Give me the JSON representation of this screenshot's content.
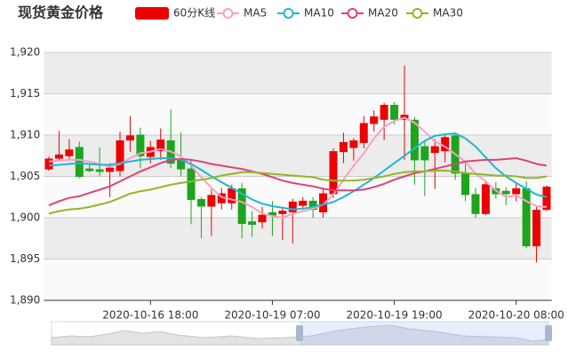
{
  "chart_data": {
    "type": "candlestick",
    "title": "现货黄金价格",
    "categories": [
      null,
      null,
      null,
      null,
      null,
      null,
      null,
      null,
      null,
      null,
      "2020-10-16 18:00",
      null,
      null,
      null,
      null,
      null,
      null,
      null,
      null,
      null,
      null,
      null,
      "2020-10-19 07:00",
      null,
      null,
      null,
      null,
      null,
      null,
      null,
      null,
      null,
      null,
      null,
      "2020-10-19 19:00",
      null,
      null,
      null,
      null,
      null,
      null,
      null,
      null,
      null,
      null,
      null,
      "2020-10-20 08:00",
      null,
      null,
      null
    ],
    "ylim": [
      1890,
      1920
    ],
    "yticks": [
      {
        "value": 1890,
        "label": "1,890"
      },
      {
        "value": 1895,
        "label": "1,895"
      },
      {
        "value": 1900,
        "label": "1,900"
      },
      {
        "value": 1905,
        "label": "1,905"
      },
      {
        "value": 1910,
        "label": "1,910"
      },
      {
        "value": 1915,
        "label": "1,915"
      },
      {
        "value": 1920,
        "label": "1,920"
      }
    ],
    "grid": true,
    "split_area": true,
    "legend": "top",
    "series": [
      {
        "name": "60分K线",
        "type": "candlestick",
        "color": "#ec0000",
        "up_color": "#ec0000",
        "down_color": "#1ea51e",
        "open": [
          1905.9,
          1907.2,
          1907.5,
          1908.5,
          1905.9,
          1905.8,
          1905.6,
          1905.7,
          1909.4,
          1910.0,
          1907.4,
          1908.1,
          1909.3,
          1907.0,
          1905.9,
          1902.2,
          1901.4,
          1901.8,
          1901.8,
          1903.5,
          1899.5,
          1899.5,
          1900.6,
          1900.5,
          1900.7,
          1901.5,
          1902.0,
          1900.7,
          1902.9,
          1908.0,
          1908.5,
          1909.1,
          1911.4,
          1911.9,
          1913.6,
          1911.9,
          1911.8,
          1908.6,
          1907.9,
          1908.1,
          1909.9,
          1905.4,
          1902.8,
          1900.5,
          1903.5,
          1903.2,
          1902.9,
          1903.5,
          1896.6,
          1901.0
        ],
        "close": [
          1907.1,
          1907.6,
          1908.2,
          1905.0,
          1905.7,
          1905.6,
          1906.0,
          1909.3,
          1909.9,
          1907.5,
          1908.5,
          1909.4,
          1906.6,
          1905.9,
          1902.2,
          1901.4,
          1902.7,
          1902.9,
          1903.5,
          1899.3,
          1899.2,
          1900.3,
          1900.3,
          1900.8,
          1901.9,
          1902.0,
          1901.0,
          1902.9,
          1908.0,
          1909.1,
          1909.3,
          1911.4,
          1912.2,
          1913.6,
          1911.9,
          1912.4,
          1907.0,
          1907.0,
          1908.6,
          1909.7,
          1905.4,
          1902.8,
          1900.5,
          1904.0,
          1902.9,
          1902.9,
          1903.5,
          1896.6,
          1900.9,
          1903.7
        ],
        "low": [
          1905.7,
          1906.9,
          1907.0,
          1904.8,
          1905.5,
          1905.0,
          1902.5,
          1905.0,
          1908.0,
          1906.0,
          1906.6,
          1907.0,
          1906.0,
          1905.0,
          1899.2,
          1897.5,
          1897.8,
          1901.0,
          1901.0,
          1897.5,
          1897.7,
          1898.7,
          1897.8,
          1897.3,
          1896.9,
          1901.0,
          1900.0,
          1900.0,
          1902.4,
          1906.6,
          1906.9,
          1908.4,
          1910.4,
          1909.4,
          1911.3,
          1907.0,
          1904.0,
          1902.6,
          1903.5,
          1906.7,
          1904.6,
          1902.0,
          1900.0,
          1900.3,
          1902.3,
          1901.5,
          1902.0,
          1896.3,
          1894.6,
          1900.8
        ],
        "high": [
          1907.4,
          1910.5,
          1909.5,
          1909.2,
          1906.5,
          1908.5,
          1906.6,
          1910.4,
          1912.3,
          1910.9,
          1909.3,
          1910.8,
          1913.1,
          1910.3,
          1907.0,
          1902.5,
          1903.4,
          1903.6,
          1904.0,
          1904.2,
          1900.8,
          1901.3,
          1902.0,
          1901.3,
          1902.3,
          1902.5,
          1902.5,
          1903.6,
          1908.4,
          1910.3,
          1909.6,
          1912.3,
          1913.0,
          1913.9,
          1914.0,
          1918.4,
          1912.2,
          1909.2,
          1909.5,
          1910.0,
          1910.3,
          1906.6,
          1903.6,
          1904.4,
          1904.3,
          1903.7,
          1904.1,
          1904.4,
          1901.4,
          1903.9
        ]
      },
      {
        "name": "MA5",
        "type": "line",
        "color": "#f5a3c0",
        "values": [
          1906.8,
          1906.9,
          1907,
          1907,
          1906.8,
          1906.5,
          1906.2,
          1906.5,
          1907.2,
          1907.8,
          1908,
          1908.3,
          1908,
          1907.4,
          1906.3,
          1904.9,
          1903.6,
          1902.5,
          1902.2,
          1901.9,
          1901.3,
          1900.5,
          1900.2,
          1900,
          1900.5,
          1900.8,
          1901.1,
          1901.6,
          1902.8,
          1904.6,
          1906.3,
          1907.8,
          1909.6,
          1911,
          1911.7,
          1912.1,
          1911.5,
          1910.4,
          1909.2,
          1908.6,
          1907.7,
          1906.8,
          1905.3,
          1904.4,
          1903.3,
          1902.5,
          1902.7,
          1902,
          1901.4,
          1901.3
        ]
      },
      {
        "name": "MA10",
        "type": "line",
        "color": "#1fb6d4",
        "values": [
          1906.3,
          1906.4,
          1906.5,
          1906.6,
          1906.5,
          1906.4,
          1906.4,
          1906.6,
          1906.8,
          1907,
          1907.1,
          1907.2,
          1907.2,
          1907,
          1906.5,
          1905.8,
          1905,
          1904.3,
          1903.6,
          1902.9,
          1902.2,
          1901.7,
          1901.4,
          1901.2,
          1901,
          1901.1,
          1901.3,
          1901.6,
          1901.9,
          1902.5,
          1903.2,
          1904,
          1904.8,
          1905.7,
          1906.6,
          1907.5,
          1908.4,
          1909.3,
          1909.9,
          1910.1,
          1910.2,
          1909.6,
          1908.6,
          1907.3,
          1906,
          1905,
          1904.2,
          1903.5,
          1902.8,
          1902.5
        ]
      },
      {
        "name": "MA20",
        "type": "line",
        "color": "#e0407a",
        "values": [
          1901.5,
          1902,
          1902.4,
          1902.6,
          1903,
          1903.4,
          1903.8,
          1904.4,
          1905,
          1905.6,
          1906.1,
          1906.6,
          1907,
          1907.1,
          1907,
          1906.8,
          1906.5,
          1906.3,
          1906.1,
          1905.9,
          1905.6,
          1905.3,
          1904.9,
          1904.5,
          1904.2,
          1904,
          1903.8,
          1903.5,
          1903.3,
          1903.3,
          1903.3,
          1903.4,
          1903.7,
          1904.1,
          1904.6,
          1905,
          1905.4,
          1905.6,
          1905.9,
          1906.2,
          1906.5,
          1906.8,
          1906.9,
          1907,
          1907,
          1907.1,
          1907.2,
          1906.9,
          1906.5,
          1906.3
        ]
      },
      {
        "name": "MA30",
        "type": "line",
        "color": "#93b524",
        "values": [
          1900.5,
          1900.8,
          1901,
          1901.1,
          1901.3,
          1901.6,
          1901.9,
          1902.4,
          1902.9,
          1903.2,
          1903.4,
          1903.7,
          1904,
          1904.2,
          1904.4,
          1904.6,
          1904.8,
          1905.1,
          1905.3,
          1905.5,
          1905.5,
          1905.4,
          1905.3,
          1905.2,
          1905.1,
          1905,
          1904.9,
          1904.6,
          1904.5,
          1904.5,
          1904.5,
          1904.6,
          1904.8,
          1905,
          1905.3,
          1905.5,
          1905.6,
          1905.6,
          1905.7,
          1905.7,
          1905.6,
          1905.4,
          1905.3,
          1905.2,
          1905.1,
          1905.1,
          1905,
          1904.8,
          1904.8,
          1905
        ]
      }
    ]
  }
}
